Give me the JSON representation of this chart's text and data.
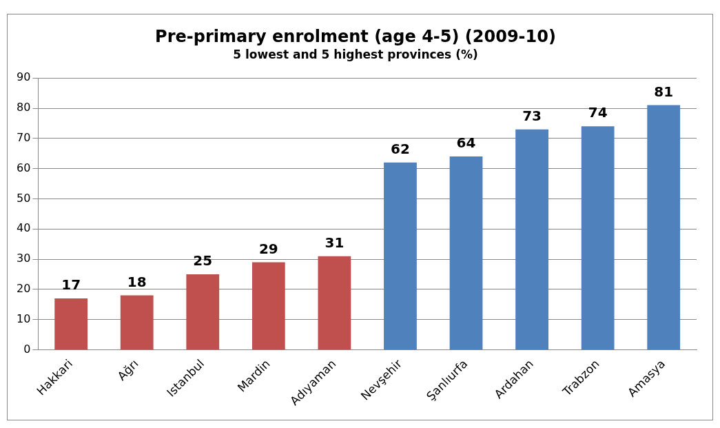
{
  "chart_data": {
    "type": "bar",
    "title": "Pre-primary enrolment (age 4-5) (2009-10)",
    "subtitle": "5 lowest and 5 highest provinces (%)",
    "categories": [
      "Hakkari",
      "Ağrı",
      "Istanbul",
      "Mardin",
      "Adıyaman",
      "Nevşehir",
      "Şanlıurfa",
      "Ardahan",
      "Trabzon",
      "Amasya"
    ],
    "values": [
      17,
      18,
      25,
      29,
      31,
      62,
      64,
      73,
      74,
      81
    ],
    "colors": [
      "#c0504d",
      "#c0504d",
      "#c0504d",
      "#c0504d",
      "#c0504d",
      "#4f81bd",
      "#4f81bd",
      "#4f81bd",
      "#4f81bd",
      "#4f81bd"
    ],
    "ylim": [
      0,
      90
    ],
    "yticks": [
      0,
      10,
      20,
      30,
      40,
      50,
      60,
      70,
      80,
      90
    ],
    "grid": "y",
    "data_labels": true,
    "legend": false
  }
}
